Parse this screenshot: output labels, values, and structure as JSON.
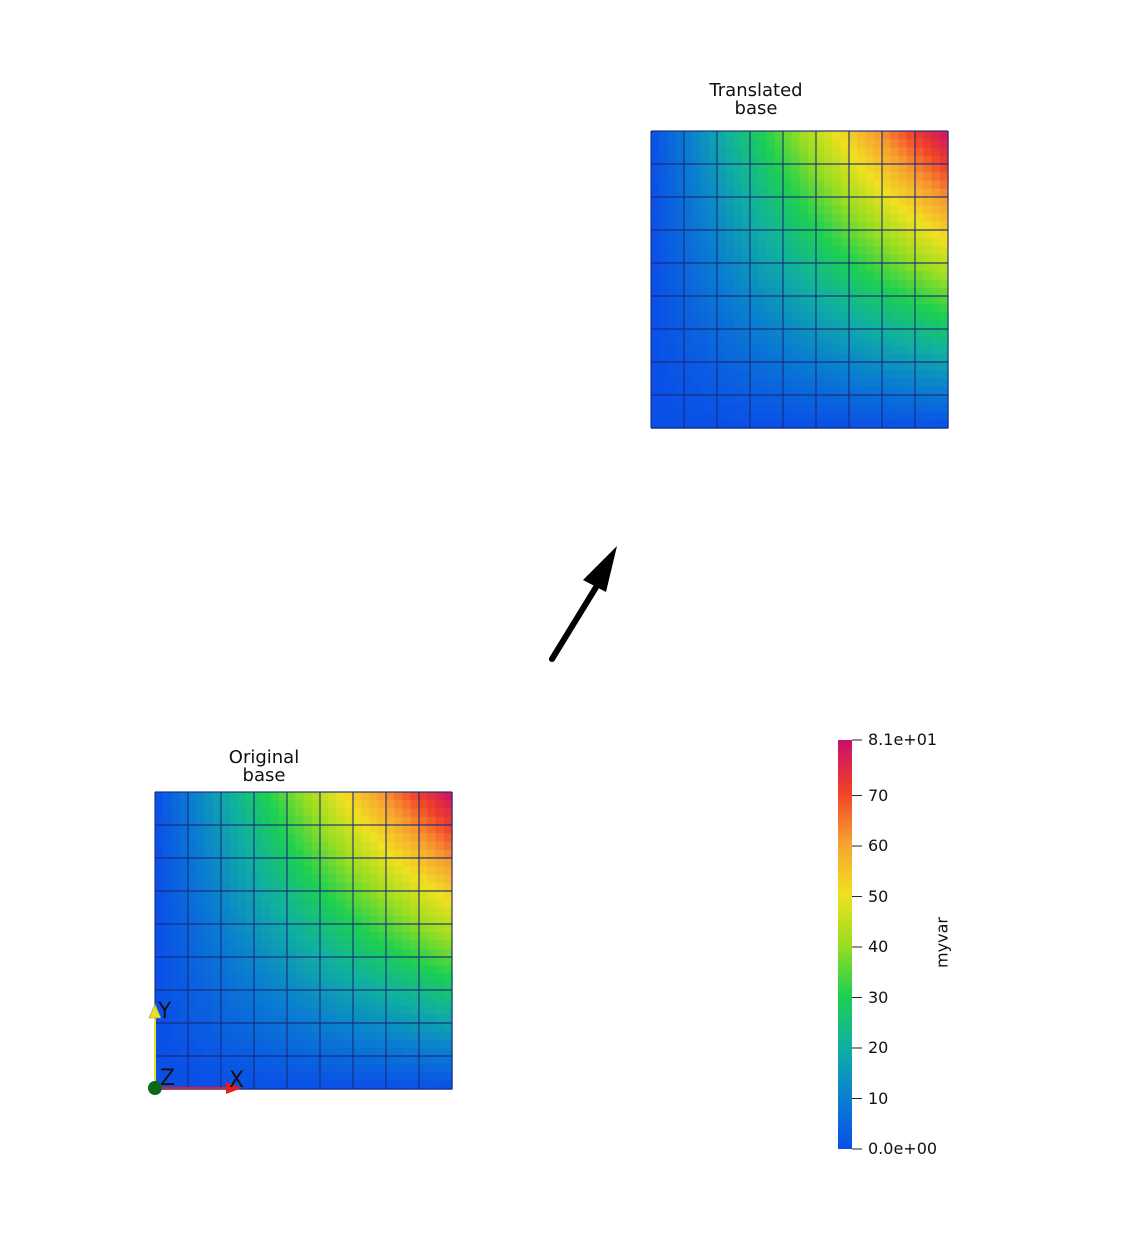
{
  "scene": {
    "translated_mesh": {
      "title": "Translated\nbase",
      "title_lines": [
        "Translated",
        "base"
      ],
      "grid_cells": 9
    },
    "original_mesh": {
      "title_lines": [
        "Original",
        "base"
      ],
      "grid_cells": 9
    },
    "arrow": {
      "color": "#000000",
      "direction": "up-right"
    },
    "field": {
      "name": "myvar",
      "min": 0,
      "max": 81
    }
  },
  "colorbar": {
    "title": "myvar",
    "colors": [
      "#0a4fe8",
      "#0a7fd0",
      "#10b0a0",
      "#1ed050",
      "#9ade20",
      "#f0e020",
      "#f8a030",
      "#f04028",
      "#c8106a"
    ],
    "ticks": [
      {
        "value": 81,
        "label": "8.1e+01"
      },
      {
        "value": 70,
        "label": "70"
      },
      {
        "value": 60,
        "label": "60"
      },
      {
        "value": 50,
        "label": "50"
      },
      {
        "value": 40,
        "label": "40"
      },
      {
        "value": 30,
        "label": "30"
      },
      {
        "value": 20,
        "label": "20"
      },
      {
        "value": 10,
        "label": "10"
      },
      {
        "value": 0,
        "label": "0.0e+00"
      }
    ]
  },
  "axes_widget": {
    "x_label": "X",
    "y_label": "Y",
    "z_label": "Z",
    "x_color": "#e02020",
    "y_color": "#e8e020",
    "z_color": "#0a6a1a"
  }
}
